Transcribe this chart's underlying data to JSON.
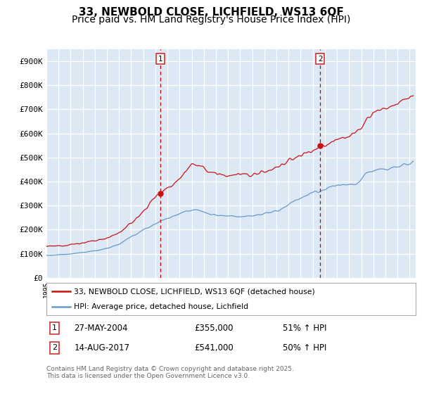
{
  "title_line1": "33, NEWBOLD CLOSE, LICHFIELD, WS13 6QF",
  "title_line2": "Price paid vs. HM Land Registry's House Price Index (HPI)",
  "ylim": [
    0,
    950000
  ],
  "yticks": [
    0,
    100000,
    200000,
    300000,
    400000,
    500000,
    600000,
    700000,
    800000,
    900000
  ],
  "ytick_labels": [
    "£0",
    "£100K",
    "£200K",
    "£300K",
    "£400K",
    "£500K",
    "£600K",
    "£700K",
    "£800K",
    "£900K"
  ],
  "x_start_year": 1995,
  "x_end_year": 2025,
  "bg_color": "#dce9f5",
  "grid_color": "#ffffff",
  "hpi_color": "#6699cc",
  "property_color": "#cc1111",
  "vline_color": "#cc0000",
  "legend_label_property": "33, NEWBOLD CLOSE, LICHFIELD, WS13 6QF (detached house)",
  "legend_label_hpi": "HPI: Average price, detached house, Lichfield",
  "transaction1_label": "1",
  "transaction1_date": "27-MAY-2004",
  "transaction1_price": "£355,000",
  "transaction1_hpi": "51% ↑ HPI",
  "transaction1_year": 2004.4,
  "transaction1_value": 355000,
  "transaction2_label": "2",
  "transaction2_date": "14-AUG-2017",
  "transaction2_price": "£541,000",
  "transaction2_hpi": "50% ↑ HPI",
  "transaction2_year": 2017.62,
  "transaction2_value": 541000,
  "footnote": "Contains HM Land Registry data © Crown copyright and database right 2025.\nThis data is licensed under the Open Government Licence v3.0.",
  "title_fontsize": 11,
  "subtitle_fontsize": 10
}
